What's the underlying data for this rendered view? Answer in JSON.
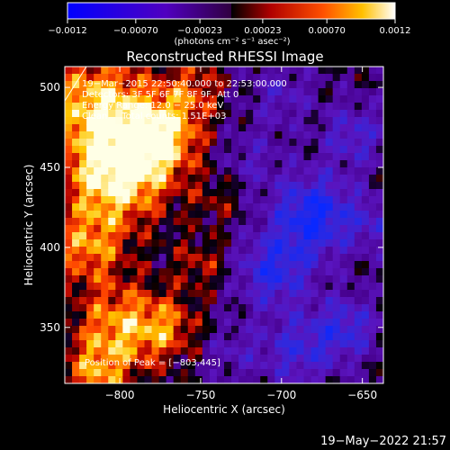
{
  "chart_data": {
    "type": "heatmap",
    "title": "Reconstructed RHESSI Image",
    "xlabel": "Heliocentric X (arcsec)",
    "ylabel": "Heliocentric Y (arcsec)",
    "xlim": [
      -834,
      -637
    ],
    "ylim": [
      315,
      513
    ],
    "x_ticks": [
      -800,
      -750,
      -700,
      -650
    ],
    "x_tick_labels": [
      "−800",
      "−750",
      "−700",
      "−650"
    ],
    "y_ticks": [
      350,
      400,
      450,
      500
    ],
    "y_tick_labels": [
      "350",
      "400",
      "450",
      "500"
    ],
    "colorbar": {
      "range": [
        -0.0012,
        0.0012
      ],
      "tick_labels": [
        "−0.0012",
        "−0.00070",
        "−0.00023",
        "0.00023",
        "0.00070",
        "0.0012"
      ],
      "tick_values": [
        -0.0012,
        -0.0007,
        -0.00023,
        0.00023,
        0.0007,
        0.0012
      ],
      "unit_label": "(photons cm⁻² s⁻¹ asec⁻²)",
      "placement": "top"
    },
    "annotations": [
      "19−Mar−2015 22:50:40.000 to 22:53:00.000",
      "Detectors: 3F 5F 6F 7F 8F 9F, Att 0",
      "Energy Range: 12.0 − 25.0 keV",
      "Clean     Total counts: 1.51E+03"
    ],
    "peak_label": "Position of Peak = [−803,445]",
    "peak": [
      -803,
      445
    ],
    "grid": false
  },
  "footer": {
    "timestamp": "19−May−2022 21:57"
  }
}
